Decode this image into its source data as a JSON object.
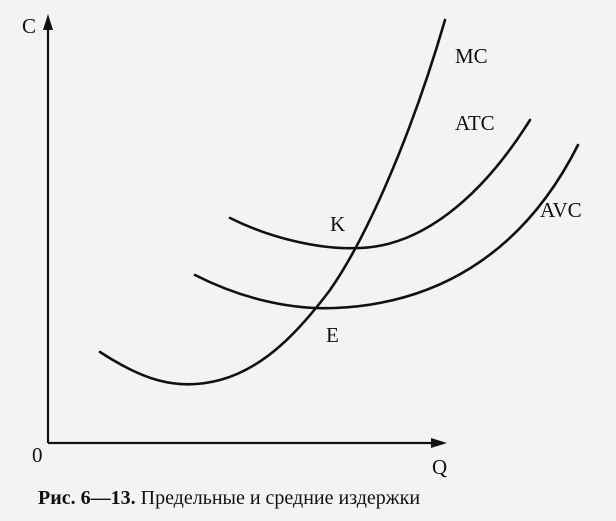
{
  "axes": {
    "y_label": "C",
    "x_label": "Q",
    "origin": "0"
  },
  "curves": [
    {
      "label": "MC"
    },
    {
      "label": "ATC"
    },
    {
      "label": "AVC"
    }
  ],
  "points": [
    {
      "label": "K"
    },
    {
      "label": "E"
    }
  ],
  "caption": {
    "number": "Рис. 6—13.",
    "text": "Предельные и средние издержки"
  }
}
